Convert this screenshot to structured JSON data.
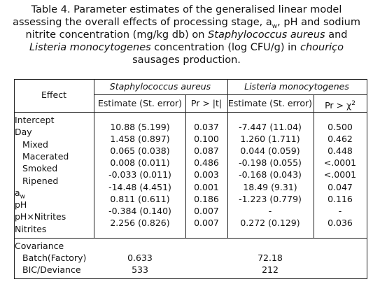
{
  "caption": {
    "lines": [
      [
        {
          "text": "Table 4. Parameter estimates of the generalised linear model"
        }
      ],
      [
        {
          "text": "assessing the overall effects of processing stage, a"
        },
        {
          "text": "w",
          "sub": true
        },
        {
          "text": ", pH and sodium"
        }
      ],
      [
        {
          "text": "nitrite concentration (mg/kg db) on "
        },
        {
          "text": "Staphylococcus aureus",
          "italic": true
        },
        {
          "text": " and"
        }
      ],
      [
        {
          "text": "Listeria monocytogenes",
          "italic": true
        },
        {
          "text": " concentration (log CFU/g) in "
        },
        {
          "text": "chouriço",
          "italic": true
        }
      ],
      [
        {
          "text": "sausages production."
        }
      ]
    ]
  },
  "table": {
    "effect_header": "Effect",
    "groups": [
      {
        "text": "Staphylococcus aureus"
      },
      {
        "text": "Listeria monocytogenes"
      }
    ],
    "columns": [
      {
        "text": "Estimate (St. error)"
      },
      {
        "text": "Pr > |t|"
      },
      {
        "text": "Estimate (St. error)"
      },
      {
        "text": "Pr > χ",
        "sup": "2"
      }
    ],
    "rows": [
      {
        "label": "Intercept",
        "values": [
          "10.88 (5.199)",
          "0.037",
          "-7.447 (11.04)",
          "0.500"
        ]
      },
      {
        "label": "Day"
      },
      {
        "label": "Mixed",
        "indent": true,
        "values": [
          "1.458 (0.897)",
          "0.100",
          "1.260 (1.711)",
          "0.462"
        ]
      },
      {
        "label": "Macerated",
        "indent": true,
        "values": [
          "0.065 (0.038)",
          "0.087",
          "0.044 (0.059)",
          "0.448"
        ]
      },
      {
        "label": "Smoked",
        "indent": true,
        "values": [
          "0.008 (0.011)",
          "0.486",
          "-0.198 (0.055)",
          "<.0001"
        ]
      },
      {
        "label": "Ripened",
        "indent": true,
        "values": [
          "-0.033 (0.011)",
          "0.003",
          "-0.168 (0.043)",
          "<.0001"
        ]
      },
      {
        "label": "a",
        "sub": "w",
        "values": [
          "-14.48 (4.451)",
          "0.001",
          "18.49 (9.31)",
          "0.047"
        ]
      },
      {
        "label": "pH",
        "values": [
          "0.811 (0.611)",
          "0.186",
          "-1.223 (0.779)",
          "0.116"
        ]
      },
      {
        "label": "pH×Nitrites",
        "values": [
          "-0.384 (0.140)",
          "0.007",
          "-",
          "-"
        ]
      },
      {
        "label": "Nitrites",
        "values": [
          "2.256 (0.826)",
          "0.007",
          "0.272 (0.129)",
          "0.036"
        ]
      }
    ],
    "covariance": {
      "title": "Covariance",
      "rows": [
        {
          "label": "Batch(Factory)",
          "values": [
            "0.633",
            "72.18"
          ]
        },
        {
          "label": "BIC/Deviance",
          "values": [
            "533",
            "212"
          ]
        }
      ]
    }
  }
}
